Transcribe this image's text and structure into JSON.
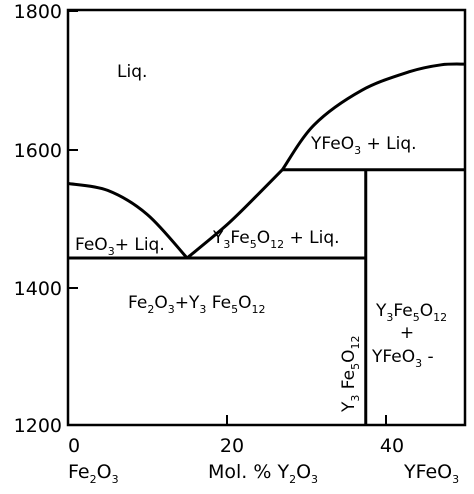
{
  "chart_data": {
    "type": "phase-diagram",
    "xlim": [
      0,
      50
    ],
    "ylim": [
      1200,
      1800
    ],
    "y_ticks": [
      "1800",
      "1600",
      "1400",
      "1200"
    ],
    "x_ticks": [
      "0",
      "20",
      "40"
    ],
    "x_axis_left_label": "Fe2O3",
    "x_axis_center_label": "Mol. % Y2O3",
    "x_axis_right_label": "YFeO3",
    "liquidus_left": [
      [
        0,
        1550
      ],
      [
        5,
        1540
      ],
      [
        10,
        1505
      ],
      [
        15,
        1442
      ]
    ],
    "liquidus_mid": [
      [
        15,
        1442
      ],
      [
        20,
        1490
      ],
      [
        24,
        1535
      ],
      [
        27,
        1570
      ]
    ],
    "liquidus_right": [
      [
        27,
        1570
      ],
      [
        31,
        1635
      ],
      [
        37,
        1685
      ],
      [
        43,
        1712
      ],
      [
        47,
        1722
      ],
      [
        50,
        1723
      ]
    ],
    "eutectic_temperature": 1442,
    "peritectic_temperature": 1570,
    "compound_composition": 37.5,
    "regions": {
      "liquid": "Liq.",
      "yfeo3_liq": "YFeO3 + Liq.",
      "feo3_liq": "FeO3+ Liq.",
      "yig_liq": "Y3Fe5O12 + Liq.",
      "fe2o3_yig": "Fe2O3+Y3Fe5O12",
      "compound": "Y3Fe5O12",
      "yig_yfeo3_top": "Y3Fe5O12",
      "yig_yfeo3_plus": "+",
      "yig_yfeo3_bottom": "YFeO3"
    }
  }
}
